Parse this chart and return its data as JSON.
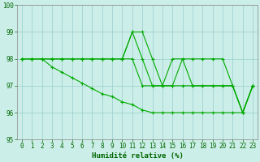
{
  "xlabel": "Humidité relative (%)",
  "background_color": "#cceee8",
  "grid_color": "#99cccc",
  "line_color": "#00aa00",
  "ylim": [
    95,
    100
  ],
  "xlim": [
    -0.5,
    23.5
  ],
  "yticks": [
    95,
    96,
    97,
    98,
    99,
    100
  ],
  "xticks": [
    0,
    1,
    2,
    3,
    4,
    5,
    6,
    7,
    8,
    9,
    10,
    11,
    12,
    13,
    14,
    15,
    16,
    17,
    18,
    19,
    20,
    21,
    22,
    23
  ],
  "series": [
    [
      98,
      98,
      98,
      98,
      98,
      98,
      98,
      98,
      98,
      98,
      98,
      99,
      99,
      98,
      97,
      98,
      98,
      98,
      98,
      98,
      98,
      97,
      96,
      97
    ],
    [
      98,
      98,
      98,
      98,
      98,
      98,
      98,
      98,
      98,
      98,
      98,
      99,
      98,
      97,
      97,
      97,
      98,
      97,
      97,
      97,
      97,
      97,
      96,
      97
    ],
    [
      98,
      98,
      98,
      98,
      98,
      98,
      98,
      98,
      98,
      98,
      98,
      98,
      97,
      97,
      97,
      97,
      97,
      97,
      97,
      97,
      97,
      97,
      96,
      97
    ],
    [
      98,
      98,
      98,
      97.7,
      97.5,
      97.3,
      97.1,
      96.9,
      96.7,
      96.6,
      96.4,
      96.3,
      96.1,
      96.0,
      96.0,
      96.0,
      96.0,
      96.0,
      96.0,
      96.0,
      96.0,
      96.0,
      96.0,
      97.0
    ]
  ],
  "font_color": "#006600",
  "tick_fontsize": 5.5,
  "label_fontsize": 6.5,
  "figsize": [
    3.2,
    2.0
  ],
  "dpi": 100
}
